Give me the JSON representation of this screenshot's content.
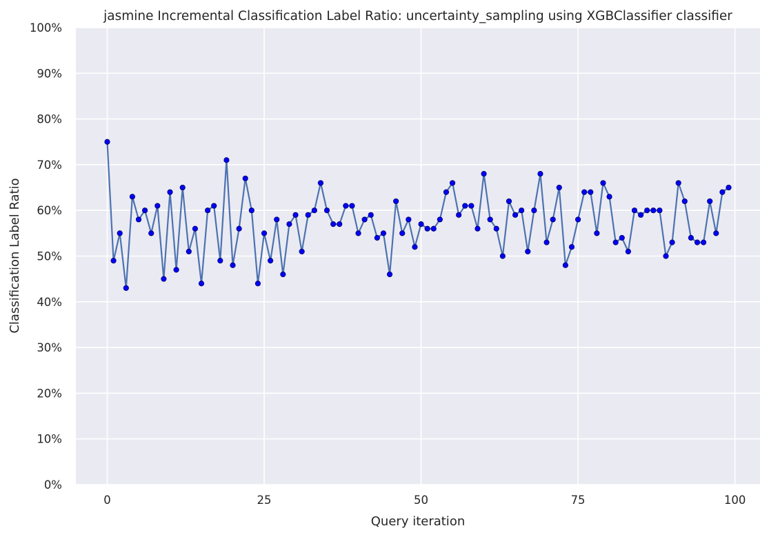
{
  "chart_data": {
    "type": "line",
    "title": "jasmine Incremental Classification Label Ratio: uncertainty_sampling using XGBClassifier classifier",
    "xlabel": "Query iteration",
    "ylabel": "Classification Label Ratio",
    "xlim": [
      -5,
      104
    ],
    "ylim": [
      0,
      100
    ],
    "x_ticks": [
      0,
      25,
      50,
      75,
      100
    ],
    "x_tick_labels": [
      "0",
      "25",
      "50",
      "75",
      "100"
    ],
    "y_ticks": [
      0,
      10,
      20,
      30,
      40,
      50,
      60,
      70,
      80,
      90,
      100
    ],
    "y_tick_labels": [
      "0%",
      "10%",
      "20%",
      "30%",
      "40%",
      "50%",
      "60%",
      "70%",
      "80%",
      "90%",
      "100%"
    ],
    "grid": true,
    "colors": {
      "plot_background": "#eaeaf2",
      "grid": "#ffffff",
      "line": "#4c72b0",
      "marker": "#0000ff",
      "marker_edge": "#00007a"
    },
    "x": [
      0,
      1,
      2,
      3,
      4,
      5,
      6,
      7,
      8,
      9,
      10,
      11,
      12,
      13,
      14,
      15,
      16,
      17,
      18,
      19,
      20,
      21,
      22,
      23,
      24,
      25,
      26,
      27,
      28,
      29,
      30,
      31,
      32,
      33,
      34,
      35,
      36,
      37,
      38,
      39,
      40,
      41,
      42,
      43,
      44,
      45,
      46,
      47,
      48,
      49,
      50,
      51,
      52,
      53,
      54,
      55,
      56,
      57,
      58,
      59,
      60,
      61,
      62,
      63,
      64,
      65,
      66,
      67,
      68,
      69,
      70,
      71,
      72,
      73,
      74,
      75,
      76,
      77,
      78,
      79,
      80,
      81,
      82,
      83,
      84,
      85,
      86,
      87,
      88,
      89,
      90,
      91,
      92,
      93,
      94,
      95,
      96,
      97,
      98,
      99
    ],
    "values": [
      75,
      49,
      55,
      43,
      63,
      58,
      60,
      55,
      61,
      45,
      64,
      47,
      65,
      51,
      56,
      44,
      60,
      61,
      49,
      71,
      48,
      56,
      67,
      60,
      44,
      55,
      49,
      58,
      46,
      57,
      59,
      51,
      59,
      60,
      66,
      60,
      57,
      57,
      61,
      61,
      55,
      58,
      59,
      54,
      55,
      46,
      62,
      55,
      58,
      52,
      57,
      56,
      56,
      58,
      64,
      66,
      59,
      61,
      61,
      56,
      68,
      58,
      56,
      50,
      62,
      59,
      60,
      51,
      60,
      68,
      53,
      58,
      65,
      48,
      52,
      58,
      64,
      64,
      55,
      66,
      63,
      53,
      54,
      51,
      60,
      59,
      60,
      60,
      60,
      50,
      53,
      66,
      62,
      54,
      53,
      53,
      62,
      55,
      64,
      65
    ]
  }
}
